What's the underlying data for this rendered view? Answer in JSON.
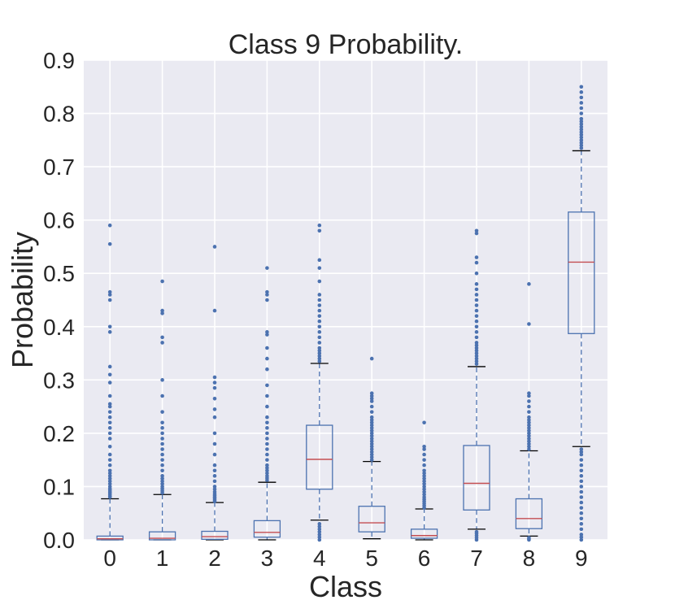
{
  "chart_data": {
    "type": "box",
    "title": "Class 9 Probability.",
    "xlabel": "Class",
    "ylabel": "Probability",
    "ylim": [
      0,
      0.9
    ],
    "yticks": [
      "0.0",
      "0.1",
      "0.2",
      "0.3",
      "0.4",
      "0.5",
      "0.6",
      "0.7",
      "0.8",
      "0.9"
    ],
    "grid": true,
    "colors": {
      "background": "#EAEAF2",
      "box": "#4C72B0",
      "median": "#C44E52",
      "whisker_cap": "#000000",
      "text": "#262626"
    },
    "categories": [
      "0",
      "1",
      "2",
      "3",
      "4",
      "5",
      "6",
      "7",
      "8",
      "9"
    ],
    "boxes": [
      {
        "whisker_low": 0.0,
        "q1": 0.0,
        "median": 0.002,
        "q3": 0.007,
        "whisker_high": 0.077,
        "outliers": [
          0.08,
          0.082,
          0.085,
          0.088,
          0.09,
          0.093,
          0.096,
          0.1,
          0.105,
          0.11,
          0.115,
          0.12,
          0.125,
          0.13,
          0.14,
          0.15,
          0.16,
          0.175,
          0.19,
          0.2,
          0.21,
          0.22,
          0.23,
          0.24,
          0.25,
          0.255,
          0.27,
          0.295,
          0.31,
          0.325,
          0.39,
          0.4,
          0.45,
          0.46,
          0.465,
          0.555,
          0.59
        ]
      },
      {
        "whisker_low": 0.0,
        "q1": 0.0,
        "median": 0.003,
        "q3": 0.015,
        "whisker_high": 0.085,
        "outliers": [
          0.088,
          0.092,
          0.096,
          0.1,
          0.105,
          0.11,
          0.115,
          0.12,
          0.13,
          0.14,
          0.15,
          0.16,
          0.17,
          0.18,
          0.19,
          0.2,
          0.21,
          0.22,
          0.24,
          0.27,
          0.3,
          0.37,
          0.38,
          0.425,
          0.43,
          0.485
        ]
      },
      {
        "whisker_low": 0.0,
        "q1": 0.001,
        "median": 0.006,
        "q3": 0.016,
        "whisker_high": 0.07,
        "outliers": [
          0.072,
          0.075,
          0.078,
          0.08,
          0.083,
          0.086,
          0.09,
          0.095,
          0.1,
          0.11,
          0.12,
          0.13,
          0.14,
          0.16,
          0.18,
          0.2,
          0.23,
          0.245,
          0.265,
          0.285,
          0.295,
          0.305,
          0.43,
          0.55
        ]
      },
      {
        "whisker_low": 0.0,
        "q1": 0.005,
        "median": 0.014,
        "q3": 0.036,
        "whisker_high": 0.108,
        "outliers": [
          0.112,
          0.116,
          0.12,
          0.125,
          0.13,
          0.135,
          0.14,
          0.15,
          0.16,
          0.17,
          0.18,
          0.19,
          0.2,
          0.21,
          0.22,
          0.23,
          0.25,
          0.27,
          0.29,
          0.32,
          0.34,
          0.36,
          0.385,
          0.39,
          0.45,
          0.46,
          0.465,
          0.51
        ]
      },
      {
        "whisker_low": 0.037,
        "q1": 0.095,
        "median": 0.151,
        "q3": 0.215,
        "whisker_high": 0.331,
        "outliers": [
          0.0,
          0.005,
          0.01,
          0.015,
          0.02,
          0.025,
          0.03,
          0.335,
          0.34,
          0.345,
          0.35,
          0.355,
          0.36,
          0.37,
          0.38,
          0.39,
          0.4,
          0.41,
          0.42,
          0.43,
          0.44,
          0.45,
          0.46,
          0.485,
          0.51,
          0.525,
          0.58,
          0.59
        ]
      },
      {
        "whisker_low": 0.002,
        "q1": 0.015,
        "median": 0.032,
        "q3": 0.063,
        "whisker_high": 0.147,
        "outliers": [
          0.15,
          0.155,
          0.16,
          0.165,
          0.17,
          0.175,
          0.18,
          0.185,
          0.19,
          0.195,
          0.2,
          0.205,
          0.21,
          0.215,
          0.22,
          0.225,
          0.23,
          0.24,
          0.25,
          0.26,
          0.265,
          0.27,
          0.275,
          0.34
        ]
      },
      {
        "whisker_low": 0.0,
        "q1": 0.003,
        "median": 0.008,
        "q3": 0.02,
        "whisker_high": 0.058,
        "outliers": [
          0.06,
          0.064,
          0.068,
          0.072,
          0.076,
          0.08,
          0.085,
          0.09,
          0.095,
          0.1,
          0.105,
          0.11,
          0.115,
          0.12,
          0.125,
          0.13,
          0.14,
          0.15,
          0.16,
          0.17,
          0.175,
          0.22
        ]
      },
      {
        "whisker_low": 0.02,
        "q1": 0.056,
        "median": 0.106,
        "q3": 0.177,
        "whisker_high": 0.325,
        "outliers": [
          0.0,
          0.004,
          0.008,
          0.012,
          0.015,
          0.33,
          0.335,
          0.34,
          0.345,
          0.35,
          0.355,
          0.36,
          0.365,
          0.37,
          0.38,
          0.39,
          0.4,
          0.41,
          0.42,
          0.43,
          0.44,
          0.45,
          0.46,
          0.47,
          0.48,
          0.5,
          0.52,
          0.53,
          0.575,
          0.58
        ]
      },
      {
        "whisker_low": 0.007,
        "q1": 0.021,
        "median": 0.04,
        "q3": 0.077,
        "whisker_high": 0.167,
        "outliers": [
          0.0,
          0.002,
          0.004,
          0.17,
          0.175,
          0.18,
          0.185,
          0.19,
          0.195,
          0.2,
          0.205,
          0.21,
          0.215,
          0.22,
          0.225,
          0.23,
          0.24,
          0.25,
          0.26,
          0.27,
          0.275,
          0.405,
          0.48
        ]
      },
      {
        "whisker_low": 0.175,
        "q1": 0.387,
        "median": 0.521,
        "q3": 0.615,
        "whisker_high": 0.73,
        "outliers": [
          0.0,
          0.005,
          0.01,
          0.02,
          0.03,
          0.04,
          0.05,
          0.06,
          0.07,
          0.08,
          0.09,
          0.1,
          0.11,
          0.12,
          0.13,
          0.14,
          0.15,
          0.16,
          0.165,
          0.17,
          0.735,
          0.74,
          0.745,
          0.75,
          0.755,
          0.76,
          0.765,
          0.77,
          0.775,
          0.78,
          0.785,
          0.79,
          0.8,
          0.81,
          0.82,
          0.83,
          0.84,
          0.85
        ]
      }
    ]
  }
}
